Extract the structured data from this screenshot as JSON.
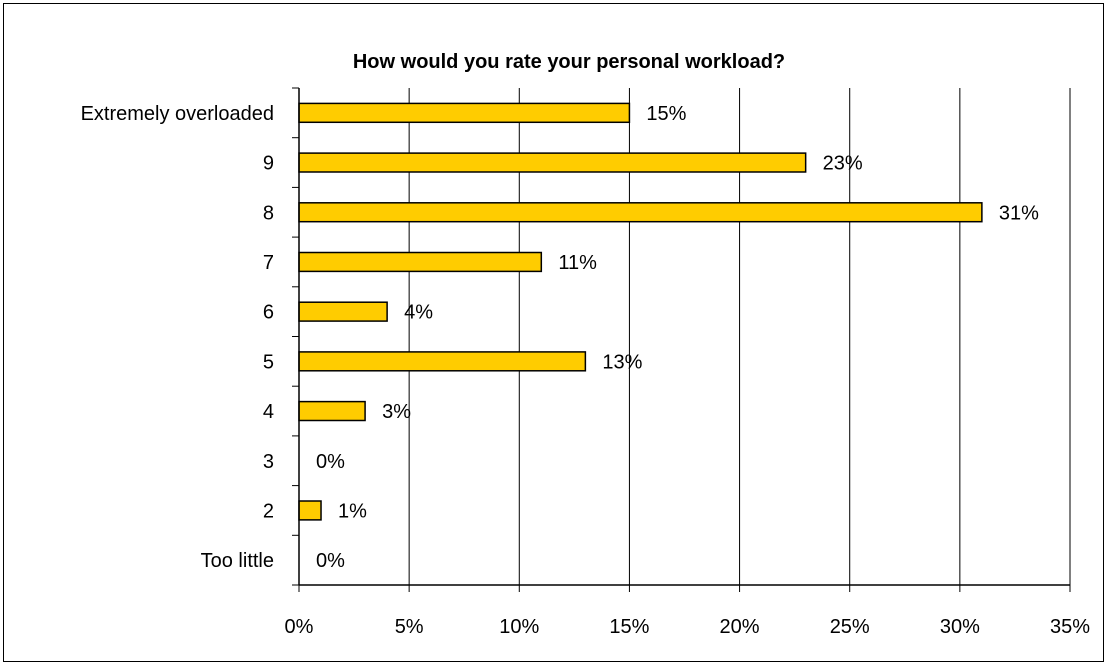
{
  "chart_data": {
    "type": "bar",
    "orientation": "horizontal",
    "title": "How would you rate your personal workload?",
    "categories": [
      "Extremely overloaded",
      "9",
      "8",
      "7",
      "6",
      "5",
      "4",
      "3",
      "2",
      "Too little"
    ],
    "values": [
      15,
      23,
      31,
      11,
      4,
      13,
      3,
      0,
      1,
      0
    ],
    "data_labels": [
      "15%",
      "23%",
      "31%",
      "11%",
      "4%",
      "13%",
      "3%",
      "0%",
      "1%",
      "0%"
    ],
    "xlim": [
      0,
      35
    ],
    "x_ticks": [
      0,
      5,
      10,
      15,
      20,
      25,
      30,
      35
    ],
    "x_tick_labels": [
      "0%",
      "5%",
      "10%",
      "15%",
      "20%",
      "25%",
      "30%",
      "35%"
    ],
    "grid": "vertical",
    "legend": "none",
    "colors": {
      "bar_fill": "#FFCC00",
      "bar_stroke": "#000000",
      "grid": "#000000"
    }
  }
}
